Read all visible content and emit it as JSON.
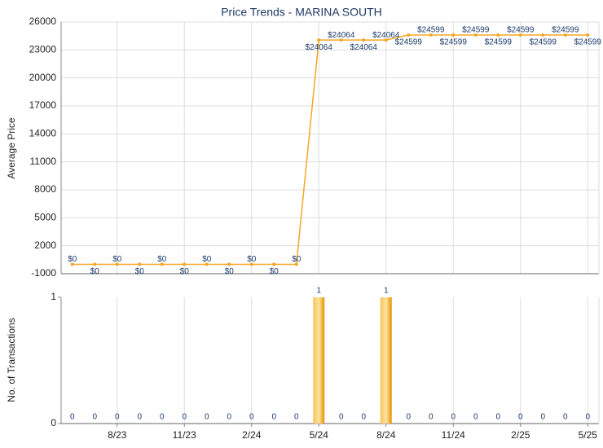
{
  "chart_data": [
    {
      "type": "line",
      "title": "Price Trends - MARINA SOUTH",
      "ylabel": "Average Price",
      "values": [
        0,
        0,
        0,
        0,
        0,
        0,
        0,
        0,
        0,
        0,
        0,
        24064,
        24064,
        24064,
        24064,
        24599,
        24599,
        24599,
        24599,
        24599,
        24599,
        24599,
        24599,
        24599
      ],
      "value_labels": [
        "$0",
        "$0",
        "$0",
        "$0",
        "$0",
        "$0",
        "$0",
        "$0",
        "$0",
        "$0",
        "$0",
        "$24064",
        "$24064",
        "$24064",
        "$24064",
        "$24599",
        "$24599",
        "$24599",
        "$24599",
        "$24599",
        "$24599",
        "$24599",
        "$24599",
        "$24599"
      ],
      "color": "#f5a623",
      "ylim": [
        -1000,
        26000
      ],
      "yticks": [
        -1000,
        2000,
        5000,
        8000,
        11000,
        14000,
        17000,
        20000,
        23000,
        26000
      ],
      "grid": true
    },
    {
      "type": "bar",
      "ylabel": "No. of Transactions",
      "categories": [
        null,
        null,
        "8/23",
        null,
        null,
        "11/23",
        null,
        null,
        "2/24",
        null,
        null,
        "5/24",
        null,
        null,
        "8/24",
        null,
        null,
        "11/24",
        null,
        null,
        "2/25",
        null,
        null,
        "5/25"
      ],
      "values": [
        0,
        0,
        0,
        0,
        0,
        0,
        0,
        0,
        0,
        0,
        0,
        1,
        0,
        0,
        1,
        0,
        0,
        0,
        0,
        0,
        0,
        0,
        0,
        0
      ],
      "color": "#f0a30a",
      "ylim": [
        0,
        1
      ],
      "yticks": [
        0,
        1
      ],
      "grid": true
    }
  ]
}
